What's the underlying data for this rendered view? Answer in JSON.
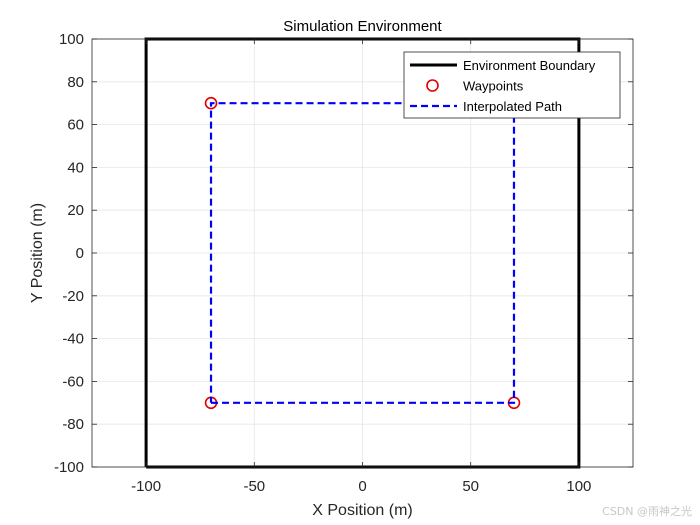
{
  "chart_data": {
    "type": "line",
    "title": "Simulation Environment",
    "xlabel": "X Position (m)",
    "ylabel": "Y Position (m)",
    "xlim": [
      -125,
      125
    ],
    "ylim": [
      -100,
      100
    ],
    "xticks": [
      -100,
      -50,
      0,
      50,
      100
    ],
    "yticks": [
      -100,
      -80,
      -60,
      -40,
      -20,
      0,
      20,
      40,
      60,
      80,
      100
    ],
    "grid": true,
    "legend_position": "top-right",
    "series": [
      {
        "name": "Environment Boundary",
        "style": "solid",
        "color": "#000000",
        "x": [
          -100,
          100,
          100,
          -100,
          -100
        ],
        "y": [
          -100,
          -100,
          100,
          100,
          -100
        ]
      },
      {
        "name": "Waypoints",
        "style": "markers",
        "marker": "circle",
        "color": "#e00000",
        "x": [
          -70,
          70,
          70,
          -70
        ],
        "y": [
          -70,
          -70,
          70,
          70
        ]
      },
      {
        "name": "Interpolated Path",
        "style": "dashed",
        "color": "#0000ff",
        "x": [
          -70,
          70,
          70,
          -70,
          -70
        ],
        "y": [
          -70,
          -70,
          70,
          70,
          -70
        ]
      }
    ]
  },
  "watermark": "CSDN @雨神之光"
}
